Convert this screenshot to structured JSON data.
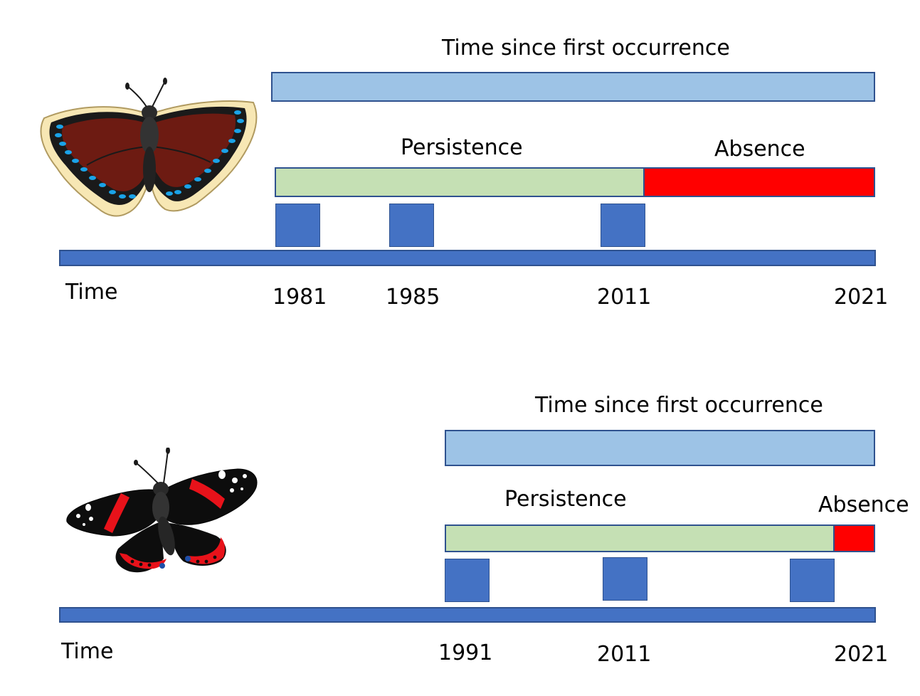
{
  "colors": {
    "occurrence_bar": "#9dc3e6",
    "persistence_bar": "#c5e0b4",
    "absence_bar": "#ff0000",
    "occurrence_marker": "#4472c4",
    "time_axis": "#4472c4",
    "outline": "#2f528f"
  },
  "panels": [
    {
      "butterfly_icon": "mourning-cloak-butterfly-icon",
      "occurrence_label": "Time since first occurrence",
      "persistence_label": "Persistence",
      "absence_label": "Absence",
      "axis_label": "Time",
      "years": [
        "1981",
        "1985",
        "2011",
        "2021"
      ]
    },
    {
      "butterfly_icon": "red-admiral-butterfly-icon",
      "occurrence_label": "Time since first occurrence",
      "persistence_label": "Persistence",
      "absence_label": "Absence",
      "axis_label": "Time",
      "years": [
        "1991",
        "2011",
        "2021"
      ]
    }
  ]
}
